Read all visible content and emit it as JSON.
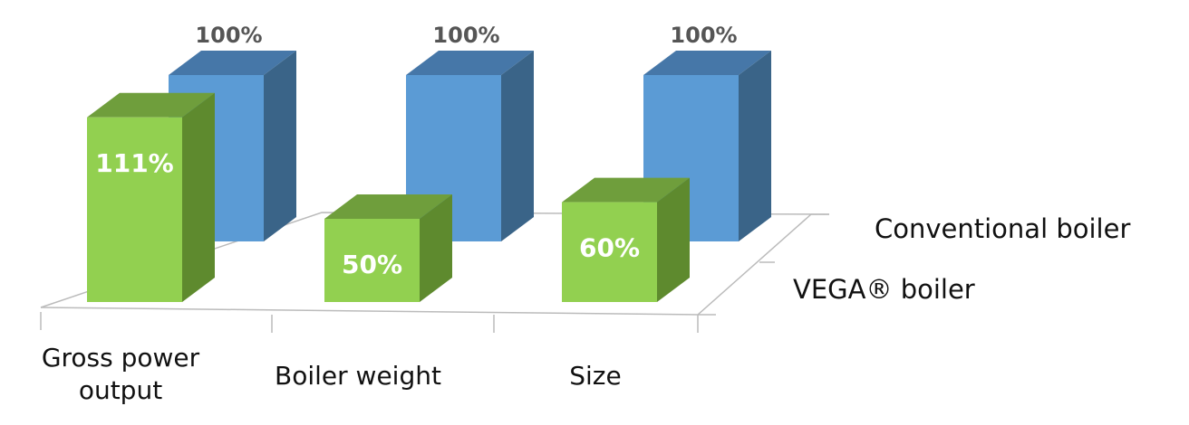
{
  "chart_data": {
    "type": "bar3d",
    "categories": [
      "Gross power output",
      "Boiler weight",
      "Size"
    ],
    "series": [
      {
        "name": "VEGA® boiler",
        "color": "#92d050",
        "values": [
          111,
          50,
          60
        ],
        "value_labels": [
          "111%",
          "50%",
          "60%"
        ]
      },
      {
        "name": "Conventional boiler",
        "color": "#5b9bd5",
        "values": [
          100,
          100,
          100
        ],
        "value_labels": [
          "100%",
          "100%",
          "100%"
        ]
      }
    ]
  }
}
